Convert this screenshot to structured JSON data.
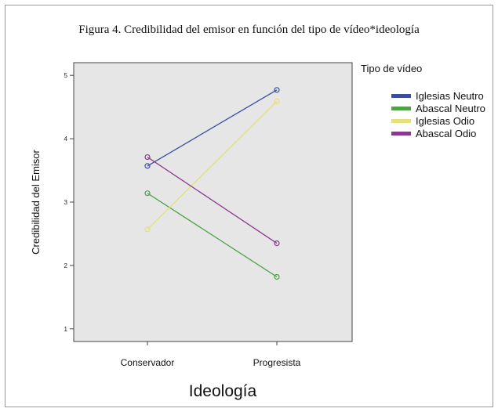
{
  "chart_data": {
    "type": "line",
    "title": "Figura 4. Credibilidad del emisor en función del tipo de vídeo*ideología",
    "xlabel": "Ideología",
    "ylabel": "Credibilidad del Emisor",
    "categories": [
      "Conservador",
      "Progresista"
    ],
    "ylim": [
      0.8,
      5.2
    ],
    "yticks": [
      1,
      2,
      3,
      4,
      5
    ],
    "grid": false,
    "legend_title": "Tipo de vídeo",
    "legend_position": "right",
    "series": [
      {
        "name": "Iglesias Neutro",
        "values": [
          3.57,
          4.77
        ],
        "color": "#3b4da0"
      },
      {
        "name": "Abascal Neutro",
        "values": [
          3.14,
          1.82
        ],
        "color": "#4fa24a"
      },
      {
        "name": "Iglesias Odio",
        "values": [
          2.57,
          4.59
        ],
        "color": "#e6e07a"
      },
      {
        "name": "Abascal Odio",
        "values": [
          3.71,
          2.35
        ],
        "color": "#8a3a8c"
      }
    ]
  }
}
